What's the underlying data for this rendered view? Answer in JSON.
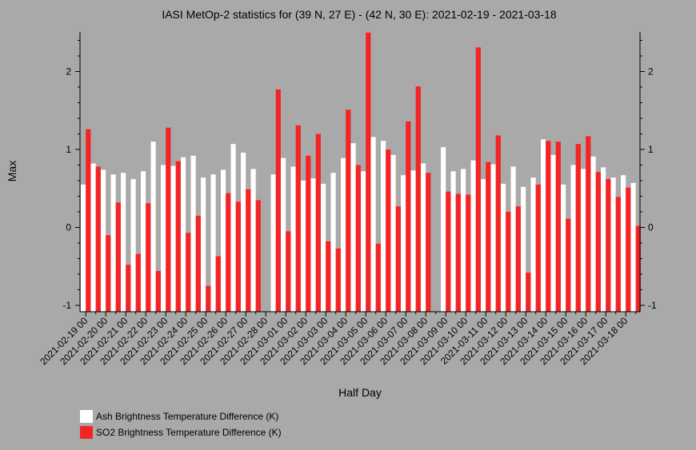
{
  "chart_data": {
    "type": "bar",
    "title": "IASI MetOp-2 statistics for (39 N, 27 E) - (42 N, 30 E): 2021-02-19 - 2021-03-18",
    "xlabel": "Half Day",
    "ylabel": "Max",
    "ylim": [
      -1.08,
      2.5
    ],
    "yticks": [
      -1,
      0,
      1,
      2
    ],
    "x_tick_labels": [
      "2021-02-19 00",
      "2021-02-20 00",
      "2021-02-21 00",
      "2021-02-22 00",
      "2021-02-23 00",
      "2021-02-24 00",
      "2021-02-25 00",
      "2021-02-26 00",
      "2021-02-27 00",
      "2021-02-28 00",
      "2021-03-01 00",
      "2021-03-02 00",
      "2021-03-03 00",
      "2021-03-04 00",
      "2021-03-05 00",
      "2021-03-06 00",
      "2021-03-07 00",
      "2021-03-08 00",
      "2021-03-09 00",
      "2021-03-10 00",
      "2021-03-11 00",
      "2021-03-12 00",
      "2021-03-13 00",
      "2021-03-14 00",
      "2021-03-15 00",
      "2021-03-16 00",
      "2021-03-17 00",
      "2021-03-18 00"
    ],
    "x": [
      "2021-02-19 00",
      "2021-02-19 12",
      "2021-02-20 00",
      "2021-02-20 12",
      "2021-02-21 00",
      "2021-02-21 12",
      "2021-02-22 00",
      "2021-02-22 12",
      "2021-02-23 00",
      "2021-02-23 12",
      "2021-02-24 00",
      "2021-02-24 12",
      "2021-02-25 00",
      "2021-02-25 12",
      "2021-02-26 00",
      "2021-02-26 12",
      "2021-02-27 00",
      "2021-02-27 12",
      "2021-02-28 00",
      "2021-02-28 12",
      "2021-03-01 00",
      "2021-03-01 12",
      "2021-03-02 00",
      "2021-03-02 12",
      "2021-03-03 00",
      "2021-03-03 12",
      "2021-03-04 00",
      "2021-03-04 12",
      "2021-03-05 00",
      "2021-03-05 12",
      "2021-03-06 00",
      "2021-03-06 12",
      "2021-03-07 00",
      "2021-03-07 12",
      "2021-03-08 00",
      "2021-03-08 12",
      "2021-03-09 00",
      "2021-03-09 12",
      "2021-03-10 00",
      "2021-03-10 12",
      "2021-03-11 00",
      "2021-03-11 12",
      "2021-03-12 00",
      "2021-03-12 12",
      "2021-03-13 00",
      "2021-03-13 12",
      "2021-03-14 00",
      "2021-03-14 12",
      "2021-03-15 00",
      "2021-03-15 12",
      "2021-03-16 00",
      "2021-03-16 12",
      "2021-03-17 00",
      "2021-03-17 12",
      "2021-03-18 00",
      "2021-03-18 12"
    ],
    "series": [
      {
        "name": "Ash Brightness Temperature Difference (K)",
        "color": "#ffffff",
        "values": [
          0.55,
          0.82,
          0.74,
          0.68,
          0.7,
          0.62,
          0.72,
          1.1,
          0.8,
          0.79,
          0.9,
          0.92,
          0.64,
          0.68,
          0.74,
          1.07,
          0.96,
          0.75,
          null,
          0.68,
          0.89,
          0.78,
          0.6,
          0.63,
          0.56,
          0.7,
          0.89,
          1.08,
          0.72,
          1.16,
          1.11,
          0.93,
          0.67,
          0.73,
          0.82,
          null,
          1.03,
          0.72,
          0.75,
          0.86,
          0.62,
          0.81,
          0.56,
          0.78,
          0.52,
          0.64,
          1.13,
          0.93,
          0.55,
          0.8,
          0.75,
          0.91,
          0.77,
          0.64,
          0.67,
          0.57
        ]
      },
      {
        "name": "SO2 Brightness Temperature Difference (K)",
        "color": "#f52424",
        "values": [
          1.26,
          0.78,
          -0.1,
          0.32,
          -0.48,
          -0.34,
          0.31,
          -0.56,
          1.28,
          0.85,
          -0.07,
          0.15,
          -0.75,
          -0.37,
          0.44,
          0.33,
          0.49,
          0.35,
          null,
          1.77,
          -0.05,
          1.31,
          0.92,
          1.2,
          -0.18,
          -0.27,
          1.51,
          0.8,
          2.5,
          -0.21,
          1.0,
          0.27,
          1.36,
          1.81,
          0.7,
          null,
          0.46,
          0.43,
          0.42,
          2.31,
          0.84,
          1.18,
          0.2,
          0.27,
          -0.58,
          0.55,
          1.11,
          1.1,
          0.11,
          1.07,
          1.17,
          0.71,
          0.62,
          0.39,
          0.51,
          0.02
        ]
      }
    ],
    "legend_position": "bottom-left",
    "grid": false
  }
}
